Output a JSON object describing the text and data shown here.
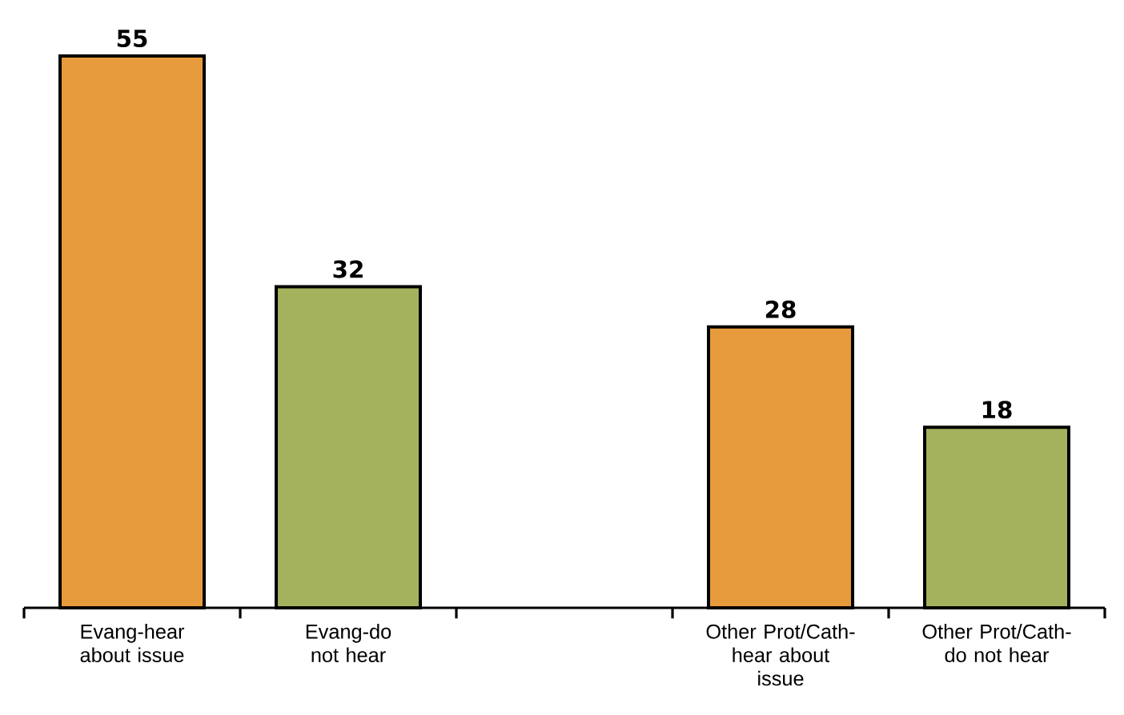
{
  "chart_data": {
    "type": "bar",
    "categories": [
      "Evang-hear about issue",
      "Evang-do not hear",
      null,
      "Other Prot/Cath-hear about issue",
      "Other Prot/Cath-do not hear"
    ],
    "values": [
      55,
      32,
      null,
      28,
      18
    ],
    "colors": [
      "#e89b3c",
      "#a4b25e",
      null,
      "#e89b3c",
      "#a4b25e"
    ],
    "data_labels": true
  }
}
